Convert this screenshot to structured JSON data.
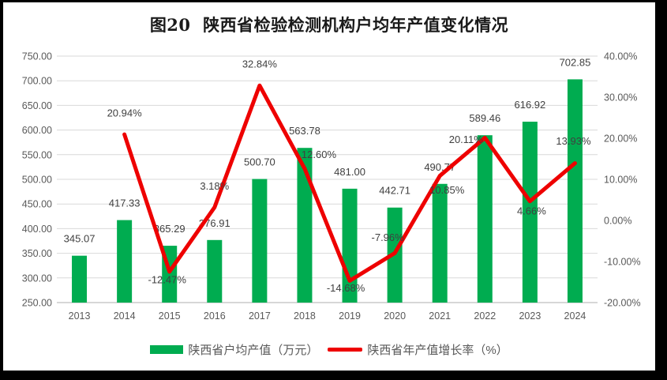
{
  "title": "图20  陕西省检验检测机构户均年产值变化情况",
  "chart_data": {
    "type": "combo",
    "categories": [
      "2013",
      "2014",
      "2015",
      "2016",
      "2017",
      "2018",
      "2019",
      "2020",
      "2021",
      "2022",
      "2023",
      "2024"
    ],
    "series": [
      {
        "name": "陕西省户均产值（万元）",
        "type": "bar",
        "axis": "left",
        "color": "#00AC50",
        "values": [
          345.07,
          417.33,
          365.29,
          376.91,
          500.7,
          563.78,
          481.0,
          442.71,
          490.77,
          589.46,
          616.92,
          702.85
        ],
        "labels": [
          "345.07",
          "417.33",
          "365.29",
          "376.91",
          "500.70",
          "563.78",
          "481.00",
          "442.71",
          "490.77",
          "589.46",
          "616.92",
          "702.85"
        ]
      },
      {
        "name": "陕西省年产值增长率（%）",
        "type": "line",
        "axis": "right",
        "color": "#EE0000",
        "values": [
          null,
          20.94,
          -12.47,
          3.18,
          32.84,
          12.6,
          -14.68,
          -7.96,
          10.85,
          20.11,
          4.66,
          13.93
        ],
        "labels": [
          null,
          "20.94%",
          "-12.47%",
          "3.18%",
          "32.84%",
          "12.60%",
          "-14.68%",
          "-7.96%",
          "10.85%",
          "20.11%",
          "4.66%",
          "13.93%"
        ]
      }
    ],
    "left_axis": {
      "min": 250,
      "max": 750,
      "step": 50,
      "ticks": [
        "750.00",
        "700.00",
        "650.00",
        "600.00",
        "550.00",
        "500.00",
        "450.00",
        "400.00",
        "350.00",
        "300.00",
        "250.00"
      ]
    },
    "right_axis": {
      "min": -20,
      "max": 40,
      "step": 10,
      "ticks": [
        "40.00%",
        "30.00%",
        "20.00%",
        "10.00%",
        "0.00%",
        "-10.00%",
        "-20.00%"
      ]
    },
    "grid": true,
    "legend_position": "bottom",
    "colors": {
      "grid": "#D9D9D9",
      "baseline": "#BFBFBF",
      "axis_text": "#595959",
      "data_label": "#404040",
      "title_text": "#1A1A1A",
      "frame": "#000000",
      "background": "#FFFFFF"
    }
  }
}
